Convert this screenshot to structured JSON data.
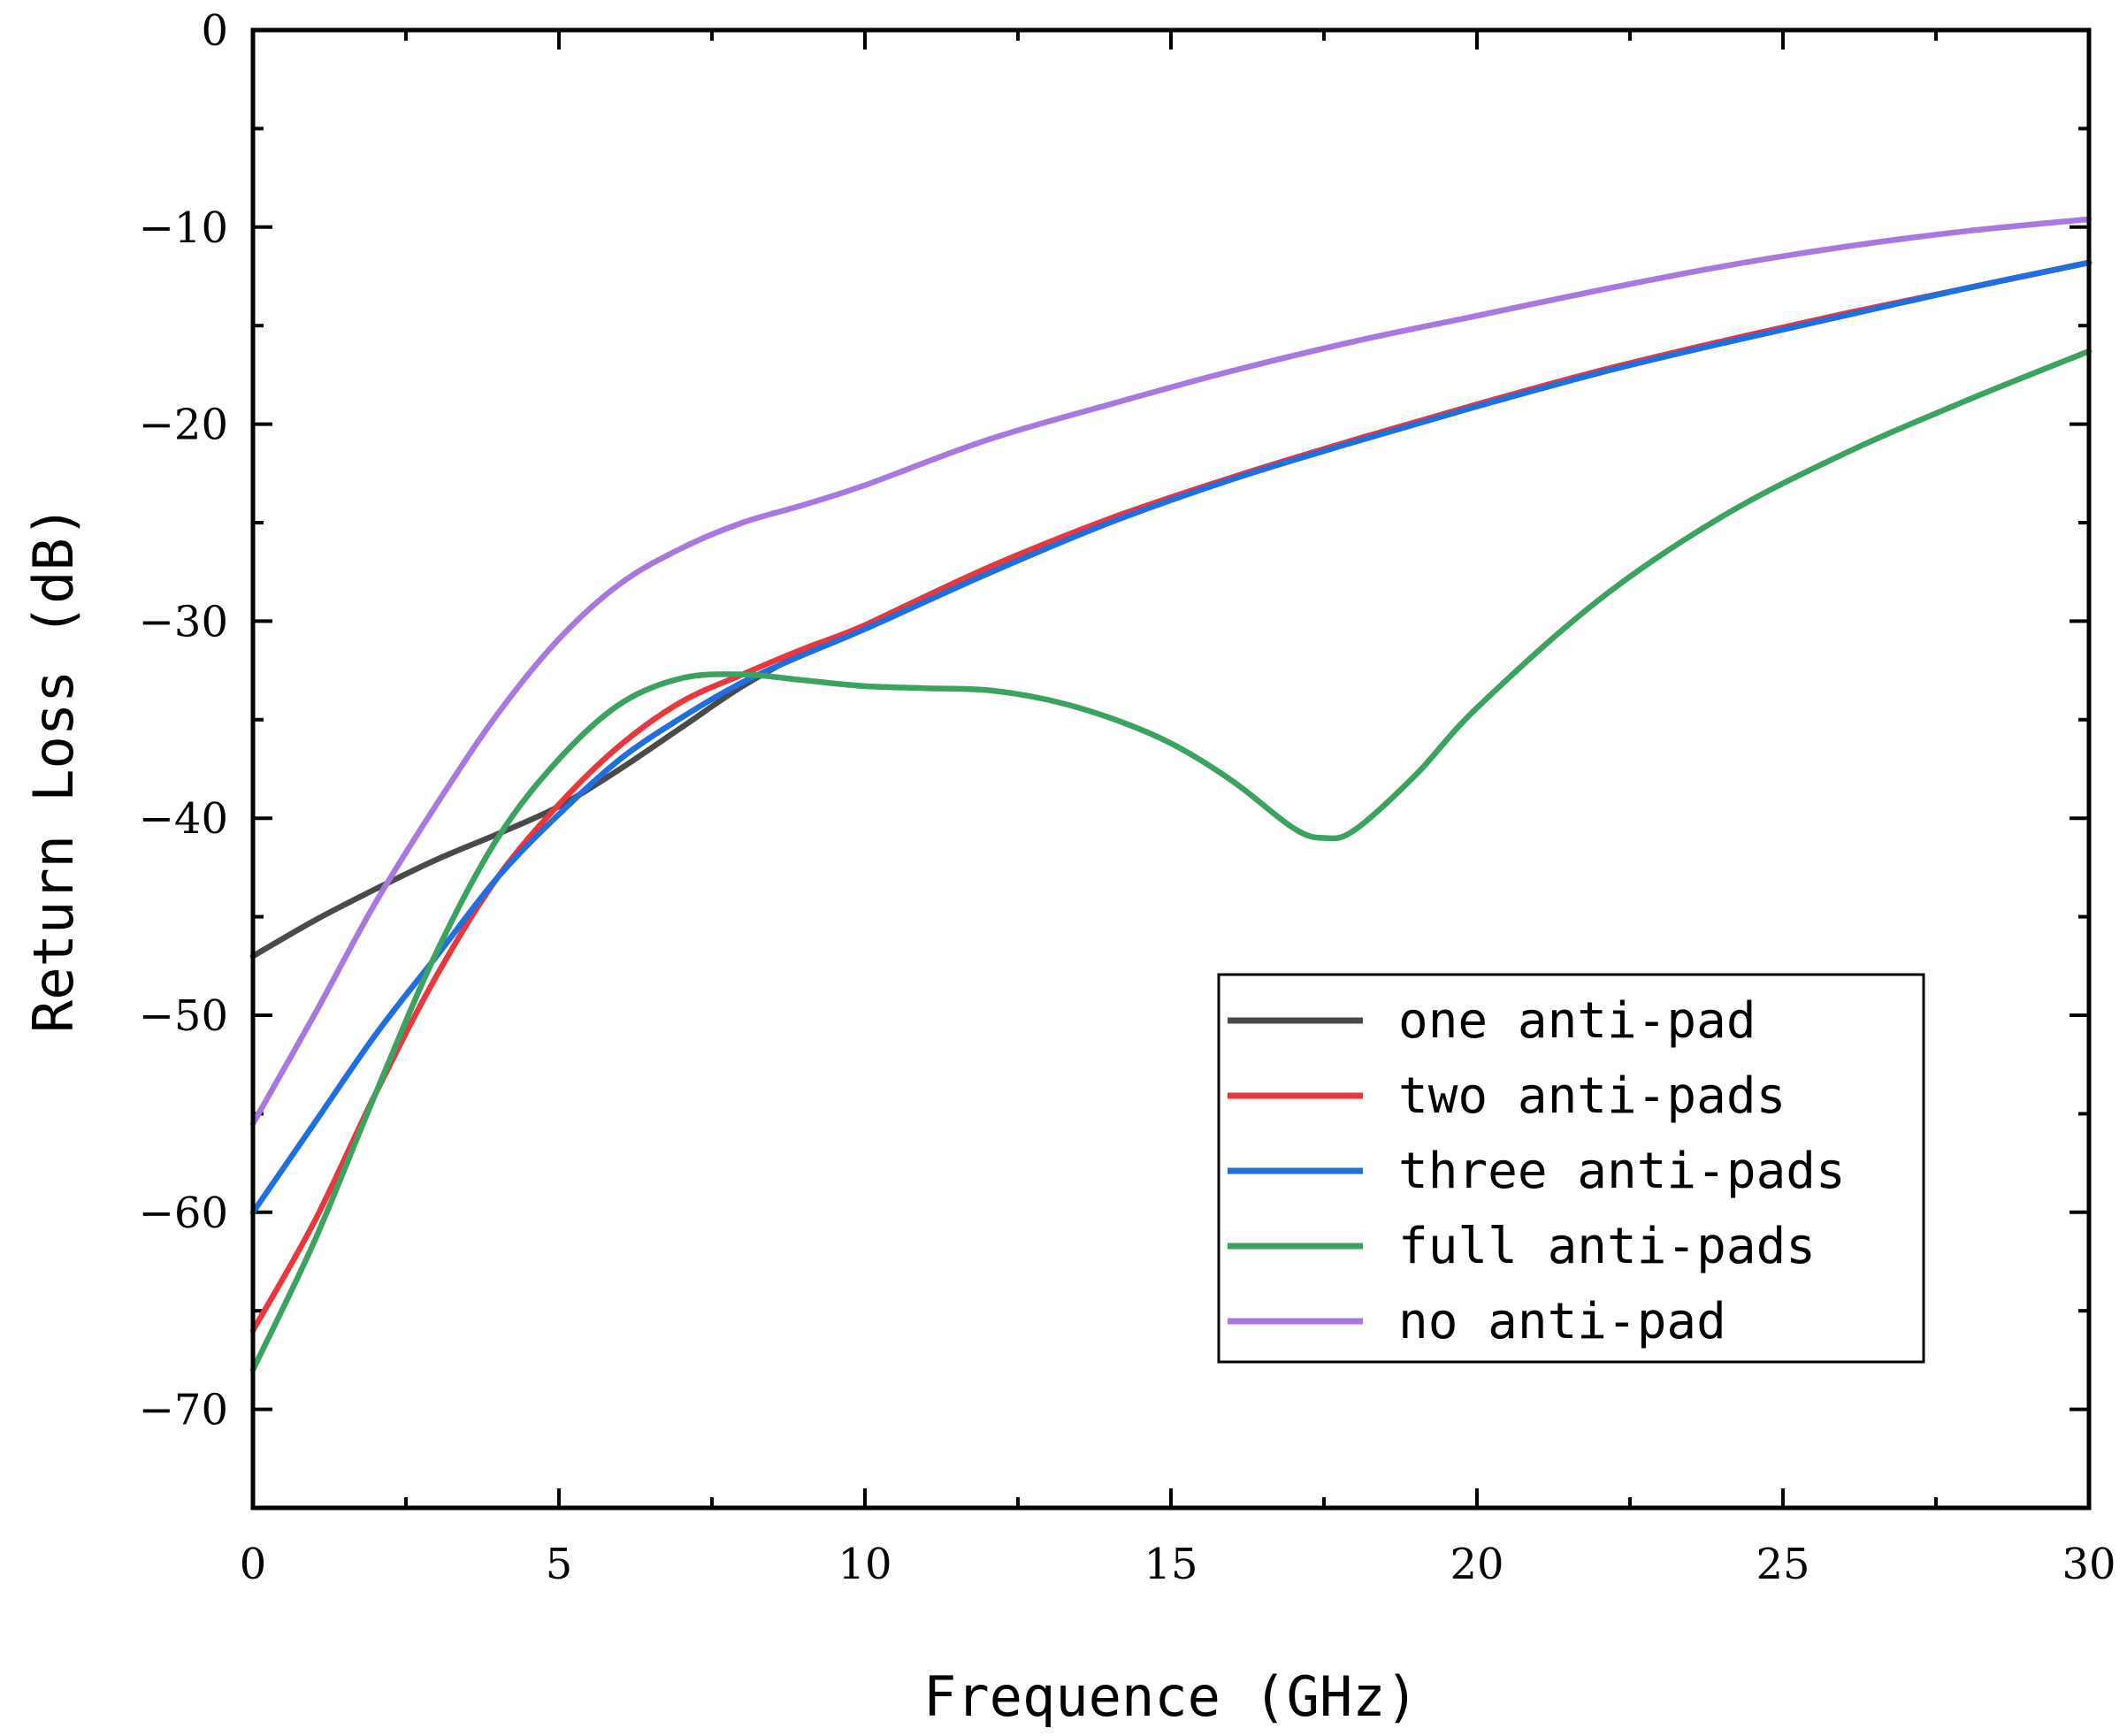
{
  "chart_data": {
    "type": "line",
    "title": "",
    "xlabel": "Frequence (GHz)",
    "ylabel": "Return Loss (dB)",
    "xlim": [
      0,
      30
    ],
    "ylim": [
      -75,
      0
    ],
    "xticks": [
      0,
      5,
      10,
      15,
      20,
      25,
      30
    ],
    "yticks": [
      0,
      -10,
      -20,
      -30,
      -40,
      -50,
      -60,
      -70
    ],
    "xtick_labels": [
      "0",
      "5",
      "10",
      "15",
      "20",
      "25",
      "30"
    ],
    "ytick_labels": [
      "0",
      "−10",
      "−20",
      "−30",
      "−40",
      "−50",
      "−60",
      "−70"
    ],
    "grid": false,
    "legend_position": "lower-right",
    "series": [
      {
        "name": "one anti-pad",
        "color": "#4a4a4a",
        "x": [
          0,
          1,
          2,
          3,
          4,
          5,
          6,
          7,
          8,
          9,
          10,
          12,
          14,
          16,
          18,
          20,
          22,
          24,
          26,
          28,
          30
        ],
        "y": [
          -47,
          -45.2,
          -43.6,
          -42.1,
          -40.8,
          -39.4,
          -37.5,
          -35.4,
          -33.3,
          -31.6,
          -30.2,
          -27.3,
          -24.8,
          -22.7,
          -20.8,
          -19,
          -17.3,
          -15.8,
          -14.4,
          -13.1,
          -11.8
        ]
      },
      {
        "name": "two anti-pads",
        "color": "#e8383d",
        "x": [
          0,
          1,
          2,
          3,
          4,
          5,
          6,
          7,
          8,
          9,
          10,
          12,
          14,
          16,
          18,
          20,
          22,
          24,
          26,
          28,
          30
        ],
        "y": [
          -66,
          -60.5,
          -54,
          -48,
          -43,
          -39.3,
          -36.3,
          -34.1,
          -32.7,
          -31.4,
          -30.2,
          -27.3,
          -24.8,
          -22.7,
          -20.8,
          -19,
          -17.3,
          -15.8,
          -14.4,
          -13.1,
          -11.8
        ]
      },
      {
        "name": "three anti-pads",
        "color": "#1f6fe0",
        "x": [
          0,
          1,
          2,
          3,
          4,
          5,
          6,
          7,
          8,
          9,
          10,
          12,
          14,
          16,
          18,
          20,
          22,
          24,
          26,
          28,
          30
        ],
        "y": [
          -60,
          -55.5,
          -51,
          -47,
          -43,
          -39.8,
          -37,
          -34.9,
          -33.1,
          -31.7,
          -30.4,
          -27.6,
          -25,
          -22.8,
          -20.9,
          -19.1,
          -17.4,
          -15.9,
          -14.5,
          -13.1,
          -11.8
        ]
      },
      {
        "name": "full anti-pads",
        "color": "#3aa35f",
        "x": [
          0,
          1,
          2,
          3,
          4,
          5,
          6,
          7,
          8,
          9,
          10,
          11,
          12,
          13,
          14,
          15,
          16,
          17,
          17.5,
          18,
          19,
          20,
          22,
          24,
          26,
          28,
          30
        ],
        "y": [
          -68,
          -61.5,
          -54,
          -46.8,
          -41,
          -37,
          -34.2,
          -32.9,
          -32.7,
          -33,
          -33.3,
          -33.4,
          -33.5,
          -34,
          -34.9,
          -36.2,
          -38.1,
          -40.5,
          -41,
          -40.6,
          -37.8,
          -34.4,
          -28.9,
          -24.7,
          -21.5,
          -18.8,
          -16.3
        ]
      },
      {
        "name": "no anti-pad",
        "color": "#a878e0",
        "x": [
          0,
          1,
          2,
          3,
          4,
          5,
          6,
          7,
          8,
          9,
          10,
          12,
          14,
          16,
          18,
          20,
          22,
          24,
          26,
          28,
          30
        ],
        "y": [
          -55.5,
          -50,
          -44.3,
          -39.3,
          -34.7,
          -30.9,
          -28.1,
          -26.3,
          -25,
          -24.1,
          -23.1,
          -20.8,
          -19,
          -17.3,
          -15.8,
          -14.5,
          -13.2,
          -12,
          -11,
          -10.2,
          -9.6
        ]
      }
    ]
  }
}
